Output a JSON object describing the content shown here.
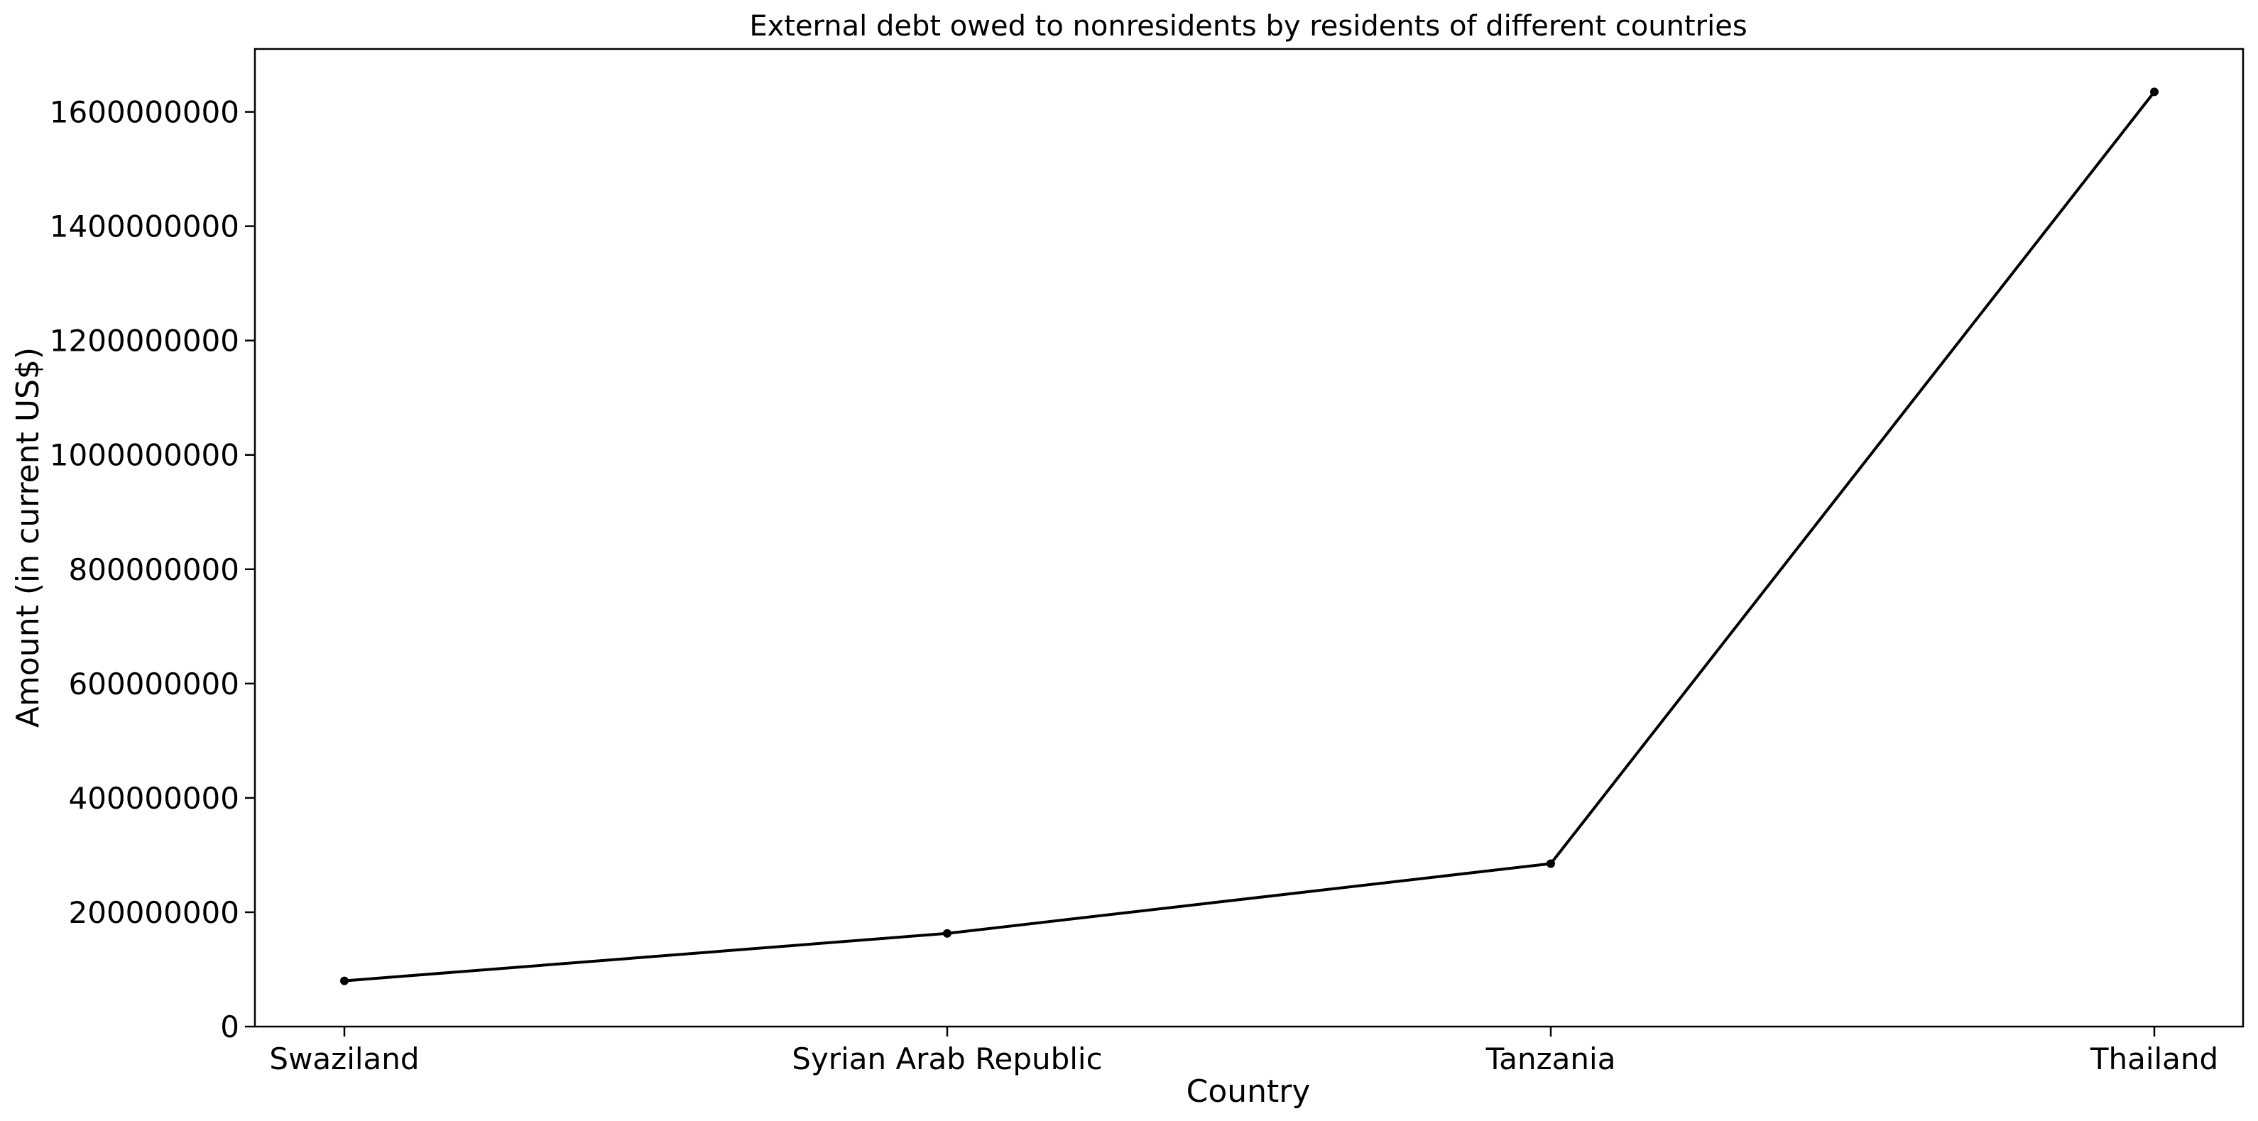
{
  "chart_data": {
    "type": "line",
    "title": "External debt owed to nonresidents by residents of different countries",
    "xlabel": "Country",
    "ylabel": "Amount (in current US$)",
    "categories": [
      "Swaziland",
      "Syrian Arab Republic",
      "Tanzania",
      "Thailand"
    ],
    "series": [
      {
        "values": [
          80000000,
          163000000,
          285000000,
          1635000000
        ]
      }
    ],
    "ylim": [
      0,
      1710000000
    ],
    "yticks": [
      0,
      200000000,
      400000000,
      600000000,
      800000000,
      1000000000,
      1200000000,
      1400000000,
      1600000000
    ],
    "ytick_labels": [
      "0",
      "200000000",
      "400000000",
      "600000000",
      "800000000",
      "1000000000",
      "1200000000",
      "1400000000",
      "1600000000"
    ],
    "grid": false,
    "line_color": "#000000",
    "marker": "dot"
  }
}
